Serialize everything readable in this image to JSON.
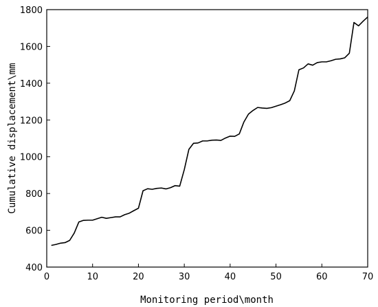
{
  "chart_data": {
    "type": "line",
    "xlabel": "Monitoring period\\month",
    "ylabel": "Cumulative displacement\\mm",
    "xlim": [
      0,
      70
    ],
    "ylim": [
      400,
      1800
    ],
    "xticks": [
      0,
      10,
      20,
      30,
      40,
      50,
      60,
      70
    ],
    "yticks": [
      400,
      600,
      800,
      1000,
      1200,
      1400,
      1600,
      1800
    ],
    "grid": false,
    "line_color": "#000000",
    "series": [
      {
        "x": [
          1,
          2,
          3,
          4,
          5,
          6,
          7,
          8,
          9,
          10,
          11,
          12,
          13,
          14,
          15,
          16,
          17,
          18,
          19,
          20,
          21,
          22,
          23,
          24,
          25,
          26,
          27,
          28,
          29,
          30,
          31,
          32,
          33,
          34,
          35,
          36,
          37,
          38,
          39,
          40,
          41,
          42,
          43,
          44,
          45,
          46,
          47,
          48,
          49,
          50,
          51,
          52,
          53,
          54,
          55,
          56,
          57,
          58,
          59,
          60,
          61,
          62,
          63,
          64,
          65,
          66,
          67,
          68,
          69,
          70
        ],
        "values": [
          518,
          523,
          530,
          533,
          545,
          585,
          645,
          654,
          655,
          655,
          663,
          671,
          665,
          669,
          673,
          673,
          685,
          693,
          707,
          720,
          815,
          826,
          823,
          828,
          830,
          825,
          832,
          843,
          840,
          930,
          1040,
          1073,
          1075,
          1086,
          1086,
          1090,
          1091,
          1089,
          1102,
          1112,
          1111,
          1124,
          1189,
          1232,
          1252,
          1268,
          1265,
          1263,
          1267,
          1275,
          1283,
          1292,
          1305,
          1358,
          1473,
          1483,
          1505,
          1498,
          1512,
          1516,
          1516,
          1522,
          1530,
          1532,
          1538,
          1563,
          1730,
          1712,
          1737,
          1760
        ]
      }
    ]
  }
}
